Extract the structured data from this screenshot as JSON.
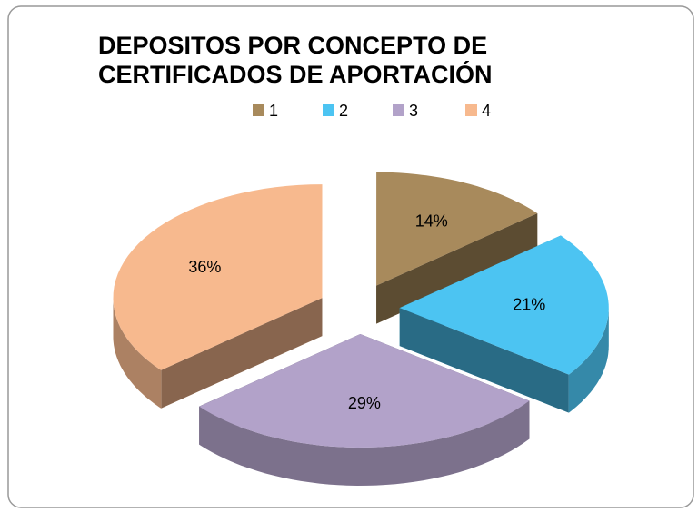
{
  "chart_data": {
    "type": "pie3d",
    "title": "DEPOSITOS  POR CONCEPTO DE CERTIFICADOS DE APORTACIÓN",
    "categories": [
      "1",
      "2",
      "3",
      "4"
    ],
    "values": [
      14,
      21,
      29,
      36
    ],
    "value_labels": [
      "14%",
      "21%",
      "29%",
      "36%"
    ],
    "colors": [
      "#a88a5c",
      "#4cc4f2",
      "#b2a2c9",
      "#f7b98e"
    ],
    "legend": "top"
  }
}
